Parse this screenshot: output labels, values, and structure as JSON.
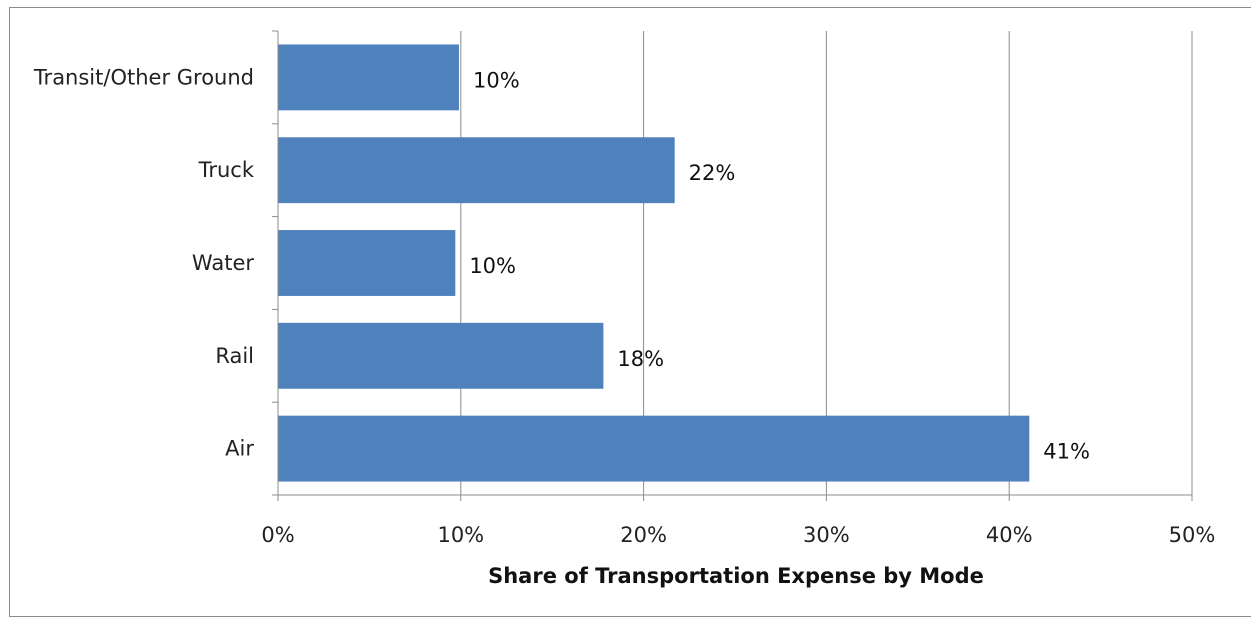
{
  "chart_data": {
    "type": "bar",
    "orientation": "horizontal",
    "categories": [
      "Transit/Other Ground",
      "Truck",
      "Water",
      "Rail",
      "Air"
    ],
    "values": [
      9.9,
      21.7,
      9.7,
      17.8,
      41.1
    ],
    "data_labels": [
      "10%",
      "22%",
      "10%",
      "18%",
      "41%"
    ],
    "xlabel": "Share of Transportation Expense by Mode",
    "ylabel": "",
    "xlim": [
      0,
      50
    ],
    "x_ticks": [
      0,
      10,
      20,
      30,
      40,
      50
    ],
    "x_tick_labels": [
      "0%",
      "10%",
      "20%",
      "30%",
      "40%",
      "50%"
    ],
    "grid": "vertical",
    "legend": "none",
    "bar_color": "#4f81bd"
  }
}
